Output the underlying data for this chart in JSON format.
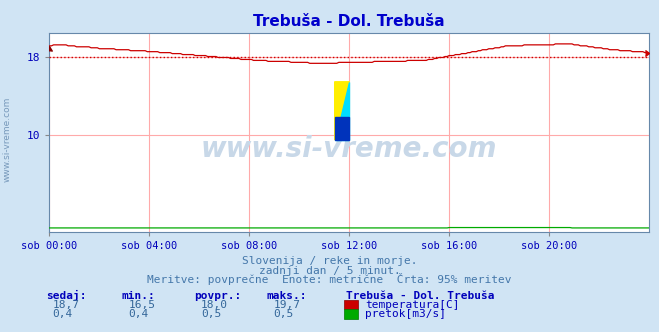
{
  "title": "Trebuša - Dol. Trebuša",
  "title_color": "#0000cc",
  "bg_color": "#d0e4f4",
  "plot_bg_color": "#ffffff",
  "grid_color": "#ffaaaa",
  "watermark_text": "www.si-vreme.com",
  "watermark_color": "#c8d8e8",
  "x_tick_labels": [
    "sob 00:00",
    "sob 04:00",
    "sob 08:00",
    "sob 12:00",
    "sob 16:00",
    "sob 20:00"
  ],
  "x_tick_positions": [
    0,
    48,
    96,
    144,
    192,
    240
  ],
  "ylim": [
    0,
    20.5
  ],
  "xlim": [
    0,
    288
  ],
  "ytick_vals": [
    10,
    18
  ],
  "ytick_labels": [
    "10",
    "18"
  ],
  "temp_color": "#cc0000",
  "flow_color": "#00aa00",
  "avg_line_color": "#cc0000",
  "temp_avg": 18.0,
  "temp_min": 16.5,
  "temp_max": 19.7,
  "temp_current": 18.7,
  "flow_avg": 0.5,
  "flow_min": 0.4,
  "flow_max": 0.5,
  "flow_current": 0.4,
  "subtitle_line1": "Slovenija / reke in morje.",
  "subtitle_line2": "zadnji dan / 5 minut.",
  "subtitle_line3": "Meritve: povprečne  Enote: metrične  Črta: 95% meritev",
  "subtitle_color": "#4477aa",
  "table_label_color": "#0000bb",
  "table_value_color": "#336699",
  "station_label": "Trebuša - Dol. Trebuša",
  "left_label": "www.si-vreme.com",
  "left_label_color": "#7799bb",
  "logo_yellow": "#ffee00",
  "logo_cyan": "#00ddff",
  "logo_blue": "#0033bb"
}
